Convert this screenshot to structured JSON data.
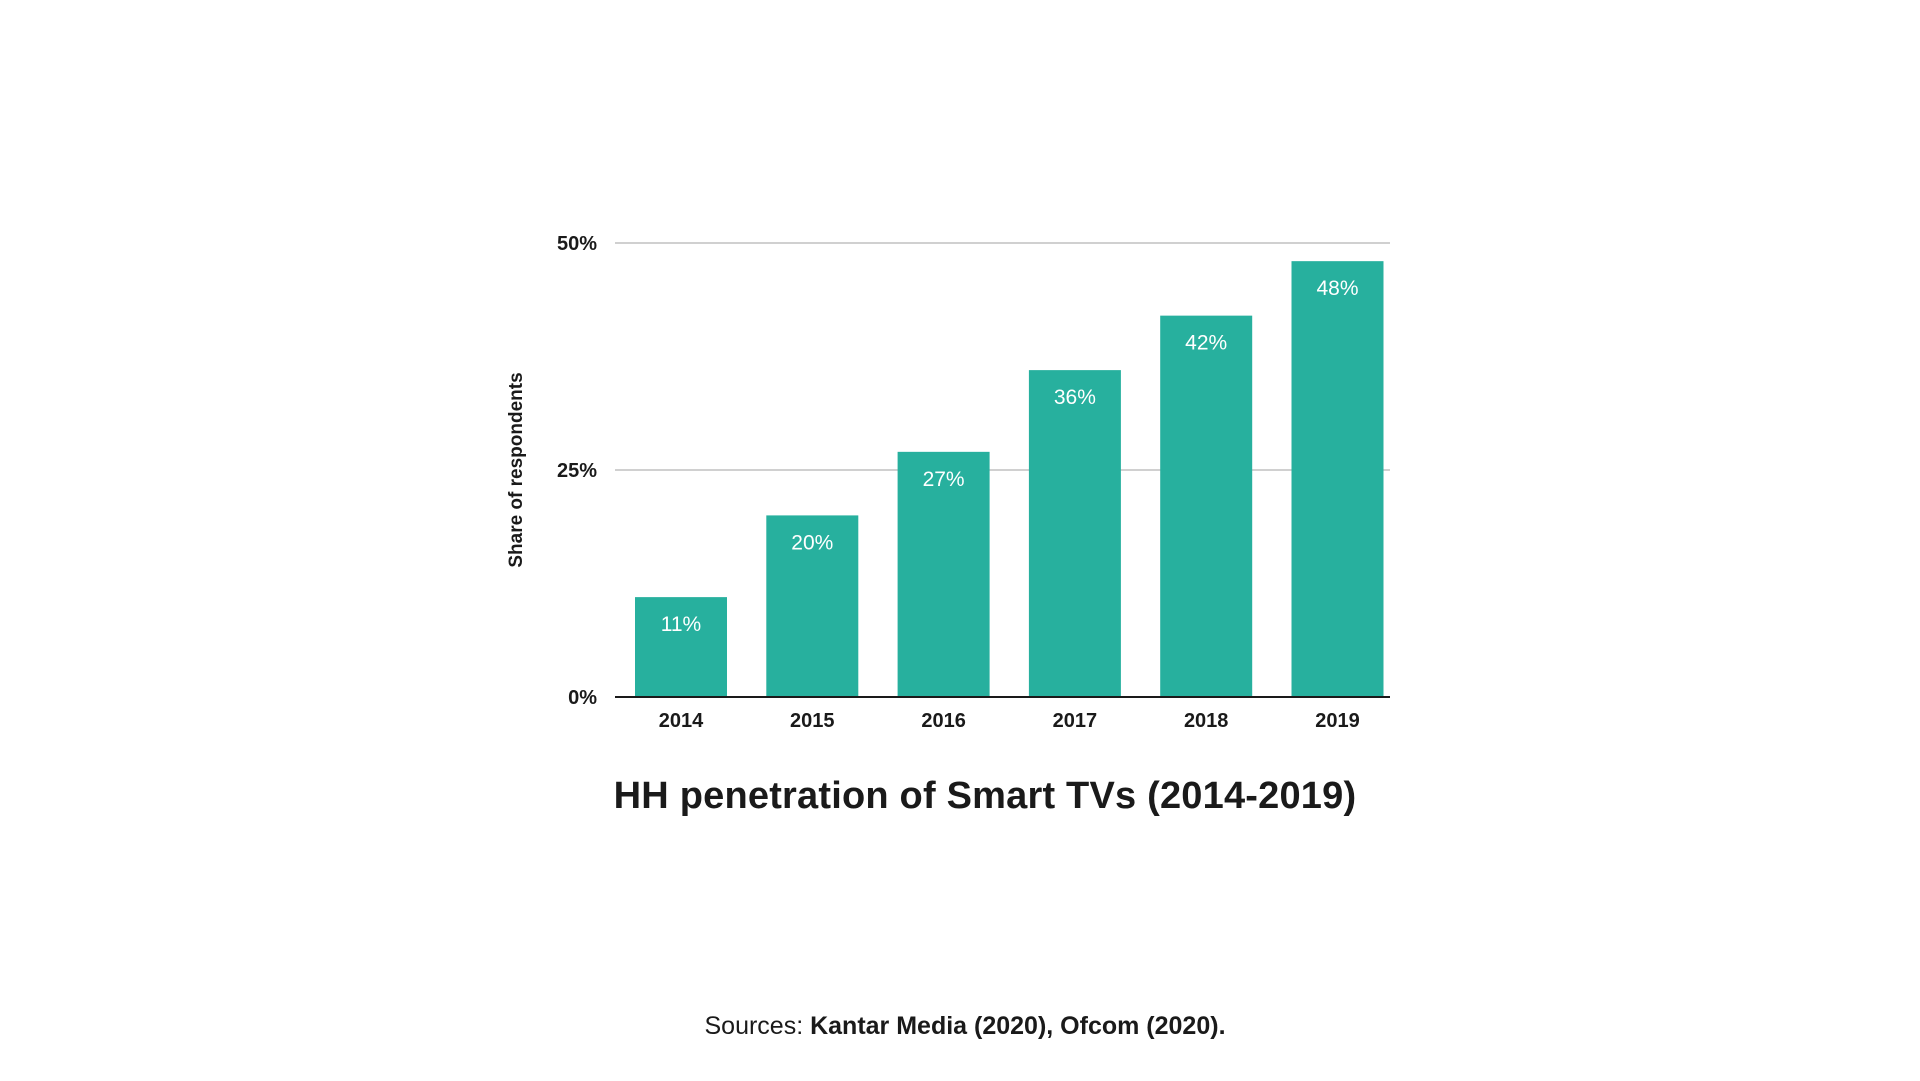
{
  "chart_data": {
    "type": "bar",
    "title": "HH penetration of Smart TVs (2014-2019)",
    "xlabel": "",
    "ylabel": "Share of respondents",
    "categories": [
      "2014",
      "2015",
      "2016",
      "2017",
      "2018",
      "2019"
    ],
    "values": [
      11,
      20,
      27,
      36,
      42,
      48
    ],
    "data_labels": [
      "11%",
      "20%",
      "27%",
      "36%",
      "42%",
      "48%"
    ],
    "ylim": [
      0,
      50
    ],
    "yticks": [
      0,
      25,
      50
    ],
    "ytick_labels": [
      "0%",
      "25%",
      "50%"
    ],
    "grid": true,
    "bar_color": "#27b09e",
    "gridline_color": "#d0d0d0",
    "baseline_color": "#1a1a1a"
  },
  "source": {
    "prefix": "Sources: ",
    "text": "Kantar Media (2020), Ofcom (2020)."
  }
}
